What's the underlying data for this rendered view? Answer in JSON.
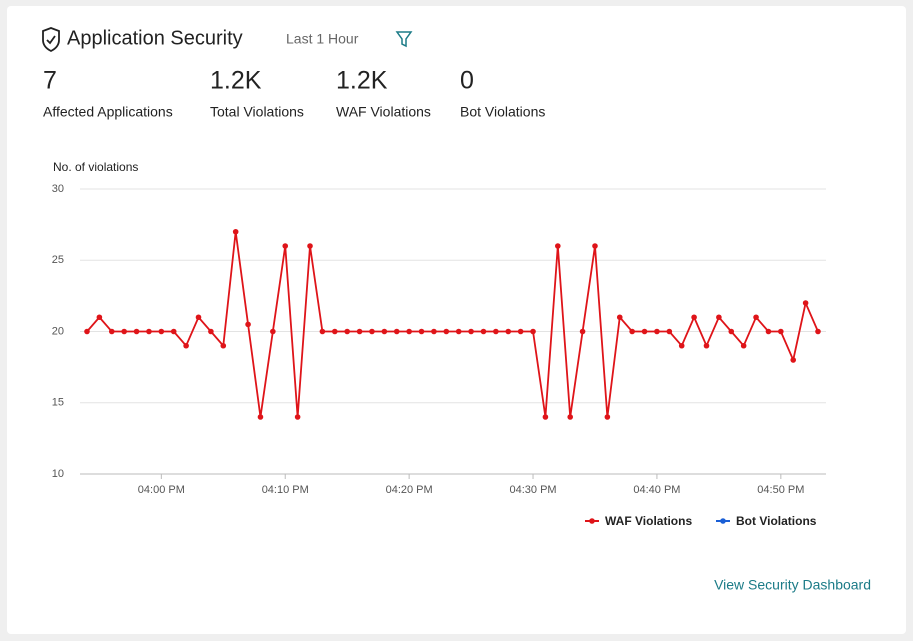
{
  "header": {
    "title": "Application Security",
    "time_range": "Last 1 Hour"
  },
  "stats": [
    {
      "value": "7",
      "label": "Affected Applications"
    },
    {
      "value": "1.2K",
      "label": "Total Violations"
    },
    {
      "value": "1.2K",
      "label": "WAF Violations"
    },
    {
      "value": "0",
      "label": "Bot Violations"
    }
  ],
  "chart_data": {
    "type": "line",
    "y_label": "No. of violations",
    "categories": [
      null,
      null,
      null,
      null,
      null,
      null,
      "04:00 PM",
      null,
      null,
      null,
      null,
      null,
      null,
      null,
      null,
      null,
      "04:10 PM",
      null,
      null,
      null,
      null,
      null,
      null,
      null,
      null,
      null,
      "04:20 PM",
      null,
      null,
      null,
      null,
      null,
      null,
      null,
      null,
      null,
      "04:30 PM",
      null,
      null,
      null,
      null,
      null,
      null,
      null,
      null,
      null,
      "04:40 PM",
      null,
      null,
      null,
      null,
      null,
      null,
      null,
      null,
      null,
      "04:50 PM",
      null,
      null,
      null
    ],
    "series": [
      {
        "name": "WAF Violations",
        "color": "#df1419",
        "values": [
          20,
          21,
          20,
          20,
          20,
          20,
          20,
          20,
          19,
          21,
          20,
          19,
          27,
          20.5,
          14,
          20,
          26,
          14,
          26,
          20,
          20,
          20,
          20,
          20,
          20,
          20,
          20,
          20,
          20,
          20,
          20,
          20,
          20,
          20,
          20,
          20,
          20,
          14,
          26,
          14,
          20,
          26,
          14,
          21,
          20,
          20,
          20,
          20,
          19,
          21,
          19,
          21,
          20,
          19,
          21,
          20,
          20,
          18,
          22,
          20
        ]
      },
      {
        "name": "Bot Violations",
        "color": "#1a5fd6",
        "values": [
          null,
          null,
          null,
          null,
          null,
          null,
          null,
          null,
          null,
          null,
          null,
          null,
          null,
          null,
          null,
          null,
          null,
          null,
          null,
          null,
          null,
          null,
          null,
          null,
          null,
          null,
          null,
          null,
          null,
          null,
          null,
          null,
          null,
          null,
          null,
          null,
          null,
          null,
          null,
          null,
          null,
          null,
          null,
          null,
          null,
          null,
          null,
          null,
          null,
          null,
          null,
          null,
          null,
          null,
          null,
          null,
          null,
          null,
          null,
          null
        ]
      }
    ],
    "ylim": [
      10,
      30
    ],
    "yticks": [
      10,
      15,
      20,
      25,
      30
    ],
    "grid": true,
    "legend": "bottom-right"
  },
  "link": "View Security Dashboard"
}
